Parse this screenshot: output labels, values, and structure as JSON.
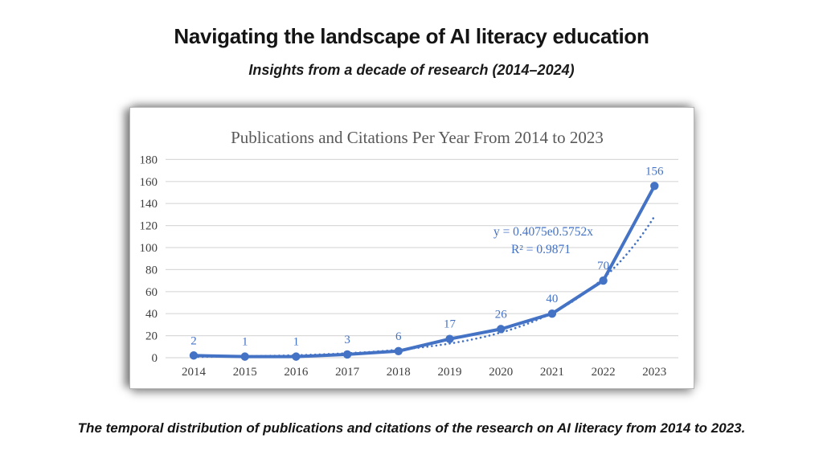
{
  "slide": {
    "title": "Navigating the landscape of AI literacy education",
    "subtitle": "Insights from a decade of research (2014–2024)",
    "caption": "The temporal distribution of publications and citations of the research on AI literacy from 2014 to 2023."
  },
  "chart_data": {
    "type": "line",
    "title": "Publications and Citations Per Year From 2014 to 2023",
    "categories": [
      "2014",
      "2015",
      "2016",
      "2017",
      "2018",
      "2019",
      "2020",
      "2021",
      "2022",
      "2023"
    ],
    "series": [
      {
        "name": "Publications and citations per year",
        "values": [
          2,
          1,
          1,
          3,
          6,
          17,
          26,
          40,
          70,
          156
        ]
      }
    ],
    "data_labels": [
      "2",
      "1",
      "1",
      "3",
      "6",
      "17",
      "26",
      "40",
      "70",
      "156"
    ],
    "xlabel": "",
    "ylabel": "",
    "ylim": [
      0,
      180
    ],
    "yticks": [
      0,
      20,
      40,
      60,
      80,
      100,
      120,
      140,
      160,
      180
    ],
    "grid": true,
    "legend": "none",
    "trendline": {
      "type": "exponential",
      "a": 0.4075,
      "b": 0.5752,
      "equation_label": "y = 0.4075e0.5752x",
      "r2_label": "R² = 0.9871"
    },
    "colors": {
      "series": "#4472C4",
      "trendline": "#4472C4",
      "gridline": "#d9d9d9",
      "title": "#595959",
      "tick_label": "#404040",
      "data_label": "#4472C4",
      "equation": "#4472C4"
    }
  }
}
